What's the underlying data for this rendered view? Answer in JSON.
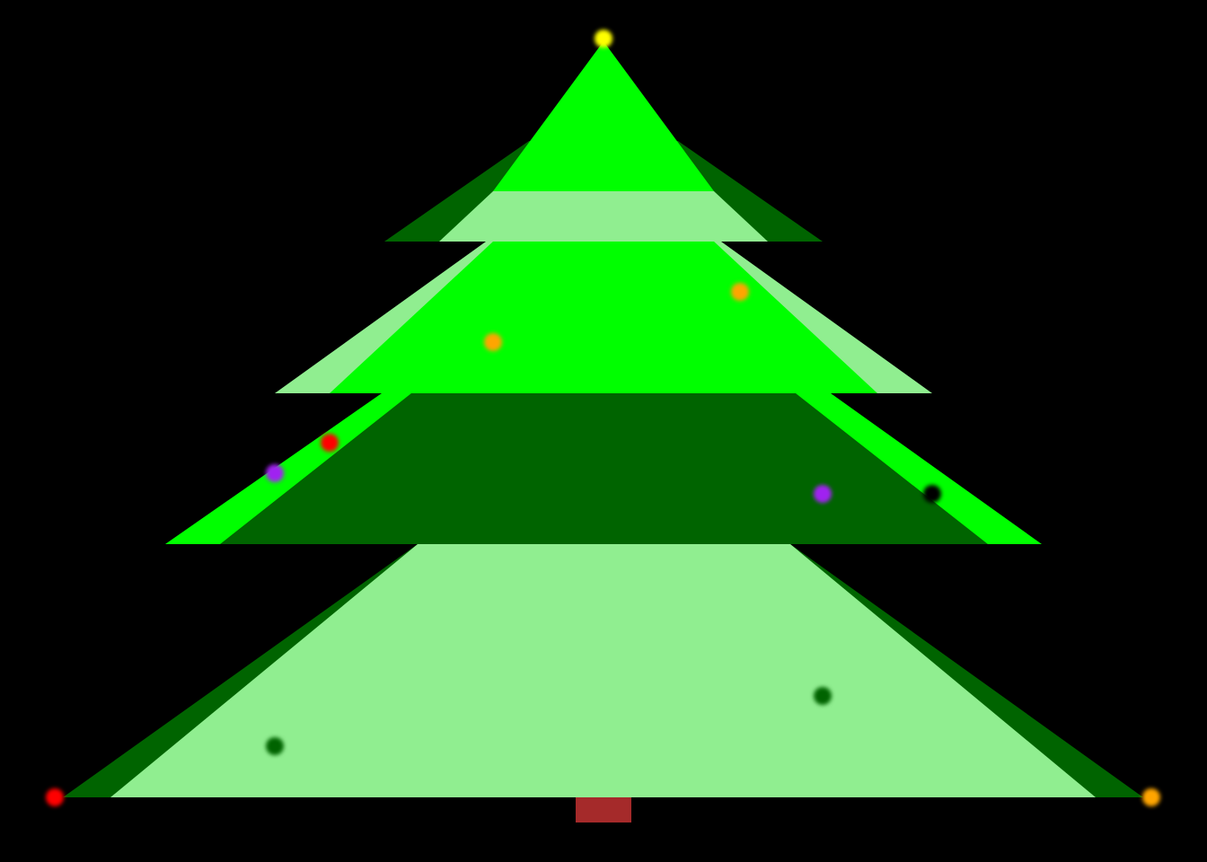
{
  "scene": {
    "background": "#000000",
    "tree": {
      "colors": {
        "bright_green": "#00ff00",
        "dark_green": "#006400",
        "light_green": "#90ee90",
        "trunk": "#a52a2a"
      }
    },
    "ornaments": [
      {
        "name": "ornament-star-top",
        "color": "#ffff00"
      },
      {
        "name": "ornament-orange",
        "color": "#ffa500"
      },
      {
        "name": "ornament-orange",
        "color": "#ffa500"
      },
      {
        "name": "ornament-red",
        "color": "#ff0000"
      },
      {
        "name": "ornament-purple",
        "color": "#a020f0"
      },
      {
        "name": "ornament-purple",
        "color": "#a020f0"
      },
      {
        "name": "ornament-black",
        "color": "#000000"
      },
      {
        "name": "ornament-dark-green",
        "color": "#006400"
      },
      {
        "name": "ornament-dark-green",
        "color": "#006400"
      },
      {
        "name": "ornament-red",
        "color": "#ff0000"
      },
      {
        "name": "ornament-orange",
        "color": "#ffa500"
      }
    ]
  }
}
